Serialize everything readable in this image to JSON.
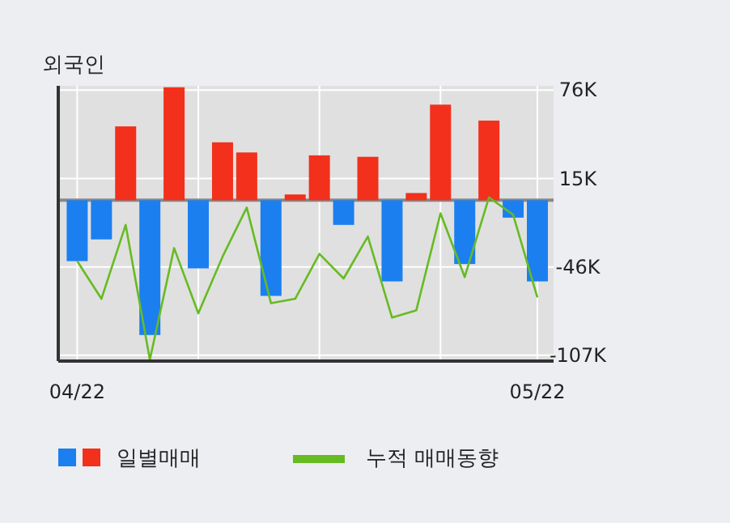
{
  "chart_data": {
    "type": "bar",
    "title": "외국인",
    "categories": [
      "04/22",
      null,
      null,
      null,
      null,
      null,
      null,
      null,
      null,
      null,
      null,
      null,
      null,
      null,
      null,
      null,
      null,
      null,
      null,
      "05/22"
    ],
    "series": [
      {
        "name": "일별매매",
        "colors": [
          "#1b7ff0",
          "#1b7ff0",
          "#f2301c",
          "#1b7ff0",
          "#f2301c",
          "#1b7ff0",
          "#f2301c",
          "#f2301c",
          "#1b7ff0",
          "#f2301c",
          "#f2301c",
          "#1b7ff0",
          "#f2301c",
          "#1b7ff0",
          "#f2301c",
          "#f2301c",
          "#1b7ff0",
          "#f2301c",
          "#1b7ff0",
          "#1b7ff0"
        ],
        "values": [
          -42000,
          -27000,
          51000,
          -93000,
          78000,
          -47000,
          40000,
          33000,
          -66000,
          4000,
          31000,
          -17000,
          30000,
          -56000,
          5000,
          66000,
          -44000,
          55000,
          -12000,
          -56000
        ]
      },
      {
        "name": "누적 매매동향",
        "type": "line",
        "color": "#66bb22",
        "values": [
          -42000,
          -68000,
          -17000,
          -110000,
          -33000,
          -78000,
          -39000,
          -5000,
          -71000,
          -68000,
          -37000,
          -54000,
          -25000,
          -81000,
          -76000,
          -9000,
          -53000,
          2000,
          -10000,
          -67000
        ]
      }
    ],
    "ylim": [
      -111000,
      79000
    ],
    "yticks": [
      {
        "value": 76000,
        "label": "76K"
      },
      {
        "value": 15000,
        "label": "15K"
      },
      {
        "value": -46000,
        "label": "-46K"
      },
      {
        "value": -107000,
        "label": "-107K"
      }
    ],
    "ref_lines": [
      {
        "axis": "y",
        "value": 0,
        "color": "#888888"
      }
    ],
    "grid": true,
    "legend": "bottom"
  }
}
